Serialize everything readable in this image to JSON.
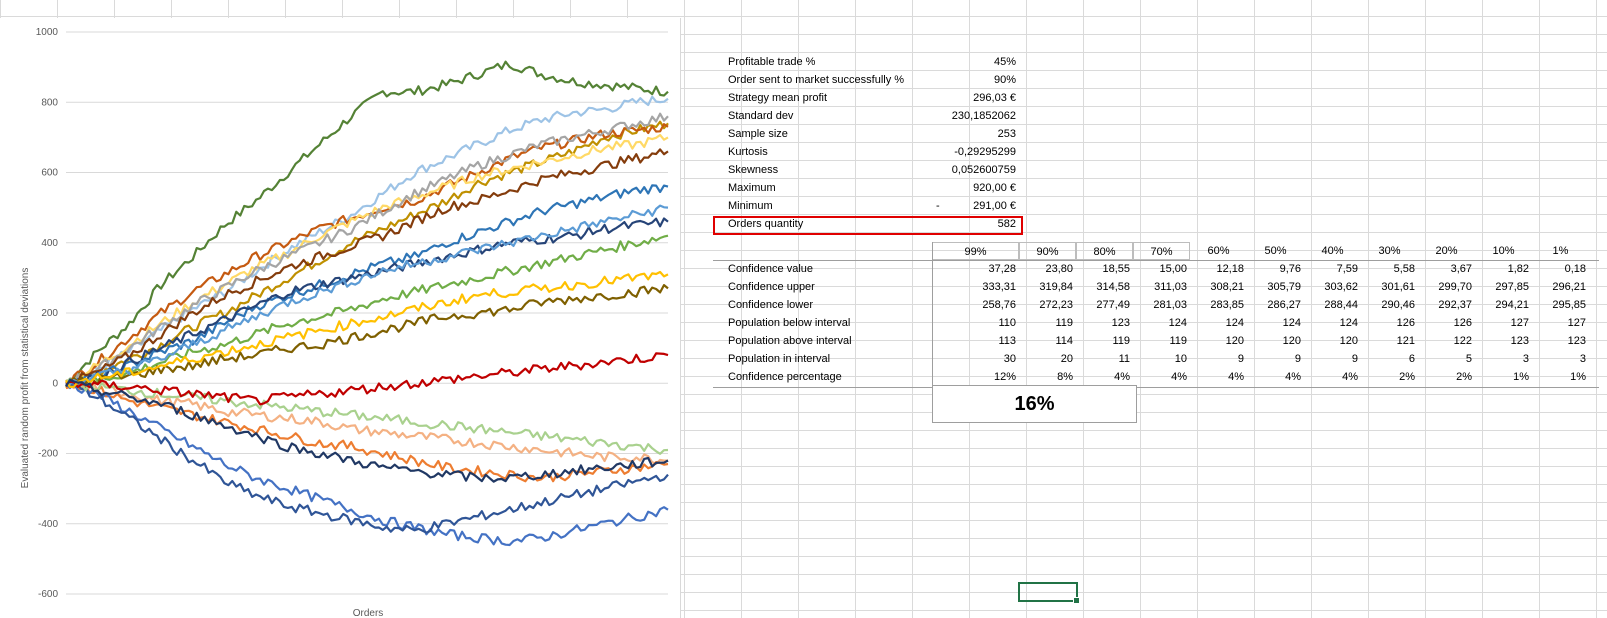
{
  "chart_data": {
    "type": "line",
    "title": "",
    "xlabel": "Orders",
    "ylabel": "Evaluated random profit from statistical deviations",
    "ylim": [
      -600,
      1000
    ],
    "yticks": [
      1000,
      800,
      600,
      400,
      200,
      0,
      -200,
      -400,
      -600
    ],
    "series": [
      {
        "color": "#548235",
        "values": [
          0,
          90,
          170,
          280,
          360,
          450,
          520,
          600,
          680,
          760,
          830,
          830,
          850,
          880,
          910,
          880,
          860,
          850,
          840,
          830
        ]
      },
      {
        "color": "#9dc3e6",
        "values": [
          0,
          40,
          90,
          150,
          210,
          260,
          320,
          380,
          430,
          480,
          540,
          600,
          640,
          680,
          720,
          750,
          770,
          780,
          800,
          810
        ]
      },
      {
        "color": "#bf9000",
        "values": [
          0,
          30,
          70,
          110,
          160,
          200,
          250,
          300,
          350,
          400,
          440,
          480,
          520,
          570,
          600,
          630,
          660,
          700,
          720,
          740
        ]
      },
      {
        "color": "#c55a11",
        "values": [
          0,
          60,
          130,
          200,
          260,
          310,
          360,
          400,
          440,
          470,
          500,
          520,
          560,
          600,
          640,
          670,
          690,
          710,
          720,
          730
        ]
      },
      {
        "color": "#ffd966",
        "values": [
          0,
          50,
          110,
          170,
          230,
          280,
          330,
          370,
          420,
          460,
          500,
          530,
          560,
          590,
          610,
          630,
          650,
          670,
          680,
          700
        ]
      },
      {
        "color": "#a5a5a5",
        "values": [
          0,
          40,
          100,
          160,
          220,
          270,
          320,
          360,
          400,
          440,
          490,
          540,
          580,
          620,
          650,
          680,
          700,
          720,
          740,
          760
        ]
      },
      {
        "color": "#2e75b6",
        "values": [
          0,
          20,
          50,
          90,
          120,
          170,
          220,
          250,
          280,
          310,
          340,
          360,
          400,
          430,
          460,
          490,
          510,
          530,
          550,
          560
        ]
      },
      {
        "color": "#843c0c",
        "values": [
          0,
          30,
          80,
          140,
          200,
          250,
          290,
          330,
          360,
          390,
          420,
          460,
          500,
          520,
          550,
          580,
          600,
          620,
          640,
          660
        ]
      },
      {
        "color": "#70ad47",
        "values": [
          0,
          10,
          30,
          60,
          90,
          110,
          140,
          170,
          190,
          210,
          240,
          260,
          280,
          300,
          320,
          340,
          360,
          380,
          400,
          420
        ]
      },
      {
        "color": "#264478",
        "values": [
          0,
          20,
          60,
          100,
          140,
          180,
          220,
          260,
          280,
          300,
          320,
          340,
          360,
          380,
          400,
          410,
          420,
          440,
          450,
          460
        ]
      },
      {
        "color": "#f4b183",
        "values": [
          0,
          -10,
          -30,
          -50,
          -60,
          -80,
          -90,
          -100,
          -110,
          -130,
          -140,
          -150,
          -160,
          -170,
          -180,
          -190,
          -200,
          -210,
          -210,
          -220
        ]
      },
      {
        "color": "#ed7d31",
        "values": [
          0,
          -20,
          -50,
          -70,
          -90,
          -110,
          -130,
          -150,
          -170,
          -180,
          -200,
          -220,
          -240,
          -250,
          -260,
          -270,
          -260,
          -250,
          -240,
          -230
        ]
      },
      {
        "color": "#4472c4",
        "values": [
          0,
          -30,
          -80,
          -130,
          -180,
          -230,
          -270,
          -300,
          -330,
          -360,
          -390,
          -410,
          -430,
          -440,
          -450,
          -440,
          -420,
          -400,
          -380,
          -360
        ]
      },
      {
        "color": "#2f5597",
        "values": [
          0,
          -40,
          -100,
          -160,
          -220,
          -280,
          -320,
          -350,
          -370,
          -390,
          -410,
          -420,
          -400,
          -380,
          -360,
          -340,
          -320,
          -300,
          -280,
          -260
        ]
      },
      {
        "color": "#a9d18e",
        "values": [
          0,
          -10,
          -20,
          -30,
          -40,
          -50,
          -60,
          -70,
          -80,
          -90,
          -100,
          -110,
          -120,
          -130,
          -140,
          -150,
          -160,
          -170,
          -180,
          -190
        ]
      },
      {
        "color": "#7f6000",
        "values": [
          0,
          10,
          20,
          40,
          50,
          70,
          80,
          100,
          110,
          130,
          150,
          170,
          190,
          200,
          210,
          230,
          240,
          250,
          260,
          270
        ]
      },
      {
        "color": "#5b9bd5",
        "values": [
          0,
          20,
          40,
          70,
          110,
          150,
          190,
          230,
          260,
          290,
          320,
          340,
          360,
          380,
          400,
          420,
          440,
          460,
          480,
          500
        ]
      },
      {
        "color": "#c00000",
        "values": [
          0,
          -5,
          -10,
          -20,
          -30,
          -40,
          -50,
          -40,
          -30,
          -20,
          -10,
          0,
          10,
          20,
          30,
          40,
          50,
          60,
          70,
          80
        ]
      },
      {
        "color": "#ffc000",
        "values": [
          0,
          15,
          30,
          50,
          70,
          90,
          110,
          130,
          150,
          170,
          190,
          210,
          230,
          250,
          260,
          270,
          280,
          290,
          300,
          310
        ]
      },
      {
        "color": "#203864",
        "values": [
          0,
          -20,
          -40,
          -60,
          -90,
          -120,
          -150,
          -180,
          -200,
          -220,
          -240,
          -250,
          -260,
          -270,
          -270,
          -260,
          -250,
          -240,
          -230,
          -220
        ]
      }
    ]
  },
  "stats": [
    {
      "label": "Profitable trade %",
      "value": "45%"
    },
    {
      "label": "Order sent to market successfully %",
      "value": "90%"
    },
    {
      "label": "Strategy mean profit",
      "value": "296,03 €"
    },
    {
      "label": "Standard dev",
      "value": "230,1852062"
    },
    {
      "label": "Sample size",
      "value": "253"
    },
    {
      "label": "Kurtosis",
      "value": "-0,29295299"
    },
    {
      "label": "Skewness",
      "value": "0,052600759"
    },
    {
      "label": "Maximum",
      "value": "920,00 €"
    },
    {
      "label": "Minimum",
      "value": "291,00 €",
      "prefix": "-"
    },
    {
      "label": "Orders quantity",
      "value": "582"
    }
  ],
  "confidence": {
    "headers": [
      "99%",
      "90%",
      "80%",
      "70%",
      "60%",
      "50%",
      "40%",
      "30%",
      "20%",
      "10%",
      "1%"
    ],
    "rows": [
      {
        "label": "Confidence value",
        "values": [
          "37,28",
          "23,80",
          "18,55",
          "15,00",
          "12,18",
          "9,76",
          "7,59",
          "5,58",
          "3,67",
          "1,82",
          "0,18"
        ]
      },
      {
        "label": "Confidence upper",
        "values": [
          "333,31",
          "319,84",
          "314,58",
          "311,03",
          "308,21",
          "305,79",
          "303,62",
          "301,61",
          "299,70",
          "297,85",
          "296,21"
        ]
      },
      {
        "label": "Confidence lower",
        "values": [
          "258,76",
          "272,23",
          "277,49",
          "281,03",
          "283,85",
          "286,27",
          "288,44",
          "290,46",
          "292,37",
          "294,21",
          "295,85"
        ]
      },
      {
        "label": "Population below interval",
        "values": [
          "110",
          "119",
          "123",
          "124",
          "124",
          "124",
          "124",
          "126",
          "126",
          "127",
          "127"
        ]
      },
      {
        "label": "Population above interval",
        "values": [
          "113",
          "114",
          "119",
          "119",
          "120",
          "120",
          "120",
          "121",
          "122",
          "123",
          "123"
        ]
      },
      {
        "label": "Population in interval",
        "values": [
          "30",
          "20",
          "11",
          "10",
          "9",
          "9",
          "9",
          "6",
          "5",
          "3",
          "3"
        ]
      },
      {
        "label": "Confidence percentage",
        "values": [
          "12%",
          "8%",
          "4%",
          "4%",
          "4%",
          "4%",
          "4%",
          "2%",
          "2%",
          "1%",
          "1%"
        ]
      }
    ]
  },
  "summary_percent": "16%"
}
